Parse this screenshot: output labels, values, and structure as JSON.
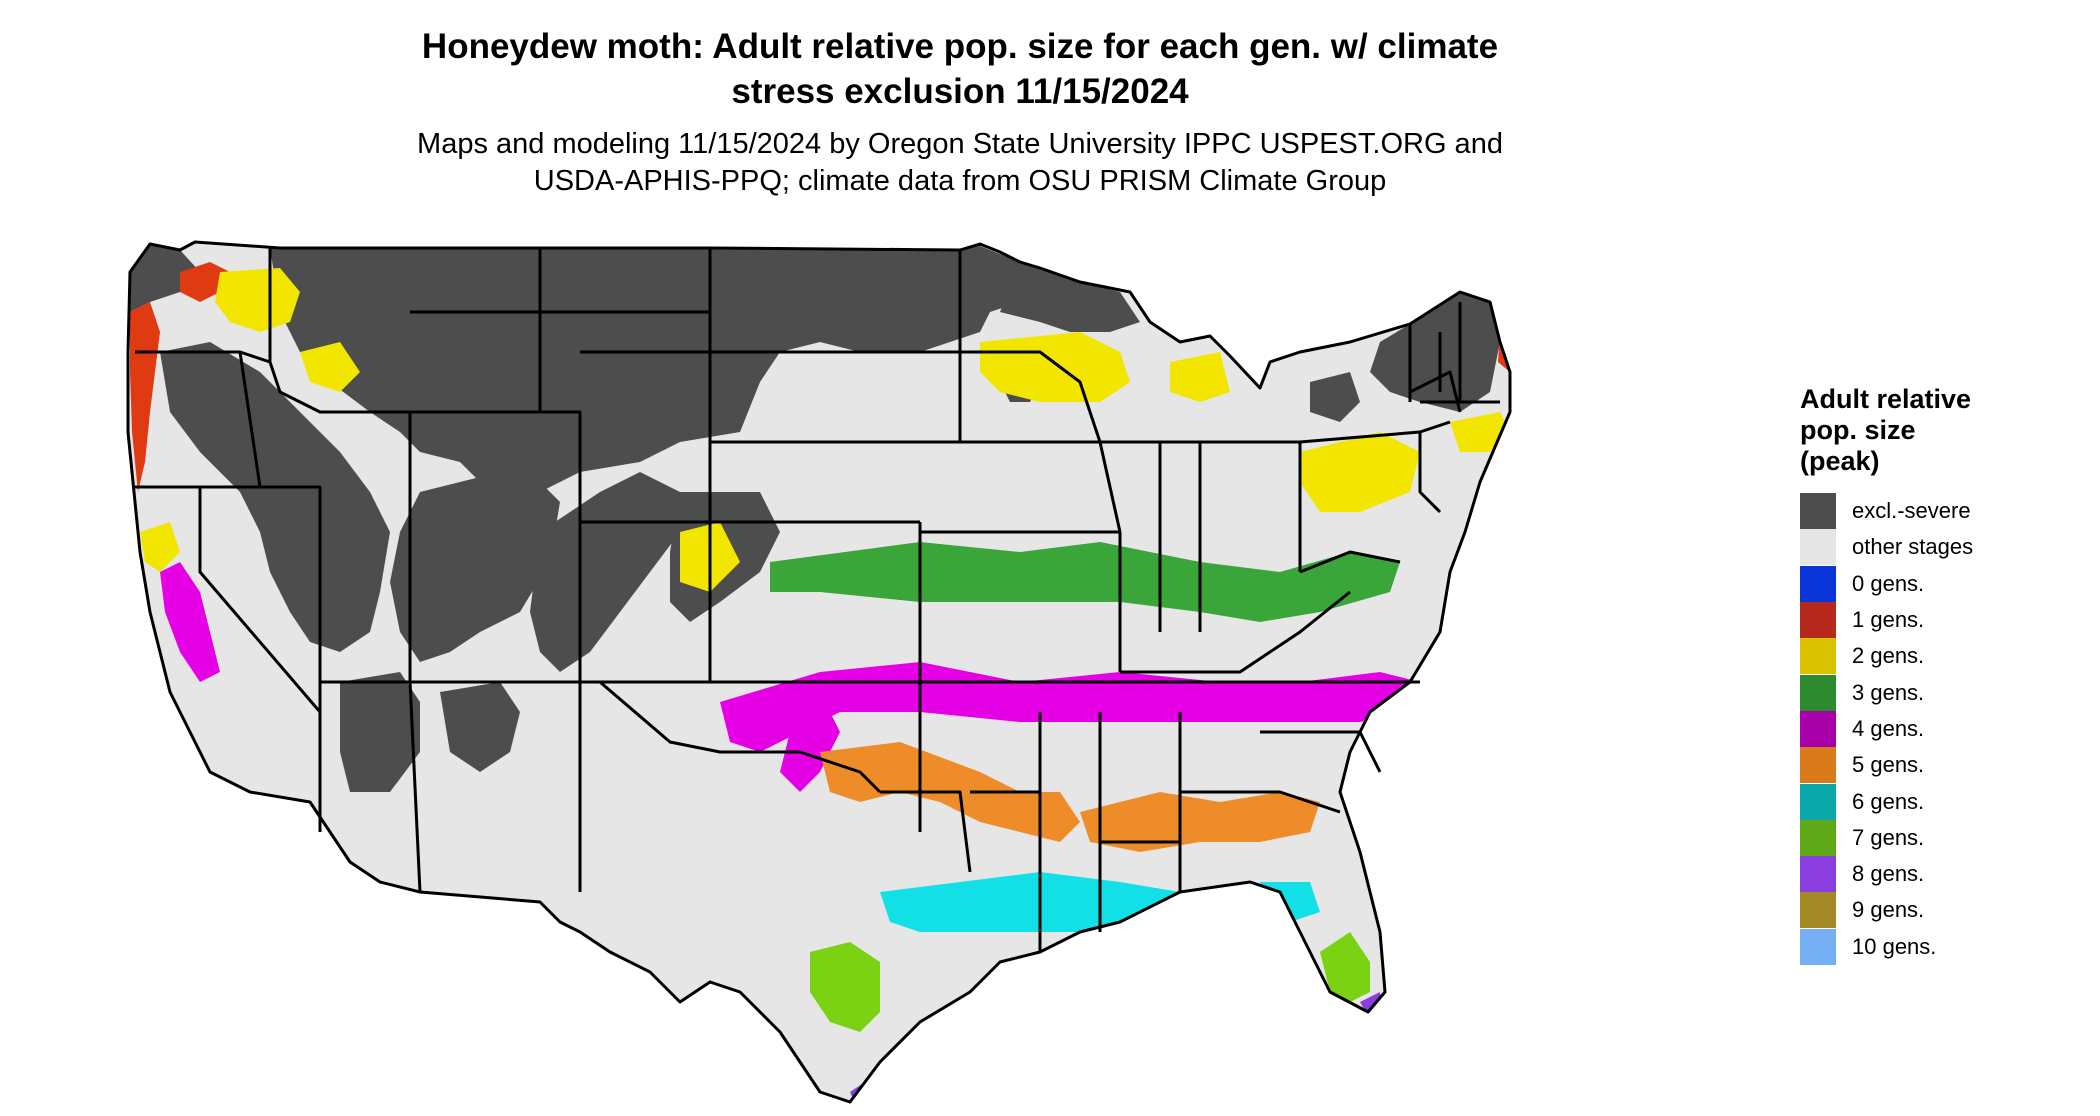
{
  "title": {
    "line1": "Honeydew moth: Adult relative pop. size for each gen. w/ climate",
    "line2": "stress exclusion 11/15/2024"
  },
  "subtitle": {
    "line1": "Maps and modeling 11/15/2024 by Oregon State University IPPC USPEST.ORG and",
    "line2": "USDA-APHIS-PPQ; climate data from OSU PRISM Climate Group"
  },
  "legend": {
    "title_line1": "Adult relative",
    "title_line2": "pop. size",
    "title_line3": "(peak)",
    "items": [
      {
        "label": "excl.-severe",
        "color": "#4d4d4d"
      },
      {
        "label": "other stages",
        "color": "#e6e6e6"
      },
      {
        "label": "0 gens.",
        "color": "#0a36d9"
      },
      {
        "label": "1 gens.",
        "color": "#b52a1c"
      },
      {
        "label": "2 gens.",
        "color": "#d9c200"
      },
      {
        "label": "3 gens.",
        "color": "#2e8a2e"
      },
      {
        "label": "4 gens.",
        "color": "#a800a8"
      },
      {
        "label": "5 gens.",
        "color": "#d97a1a"
      },
      {
        "label": "6 gens.",
        "color": "#0aa8a8"
      },
      {
        "label": "7 gens.",
        "color": "#5fa818"
      },
      {
        "label": "8 gens.",
        "color": "#8a3ee0"
      },
      {
        "label": "9 gens.",
        "color": "#a38a26"
      },
      {
        "label": "10 gens.",
        "color": "#73aff2"
      }
    ]
  },
  "map": {
    "region": "Contiguous United States",
    "colors": {
      "land": "#e6e6e6",
      "excluded": "#4d4d4d",
      "state_border": "#000000",
      "gen1": "#e03a12",
      "gen2": "#f2e600",
      "gen3": "#3aa63a",
      "gen4": "#e600e6",
      "gen5": "#ee8c2a",
      "gen6": "#12e0e6",
      "gen7": "#7ad212",
      "gen8": "#8a3ee0"
    }
  }
}
